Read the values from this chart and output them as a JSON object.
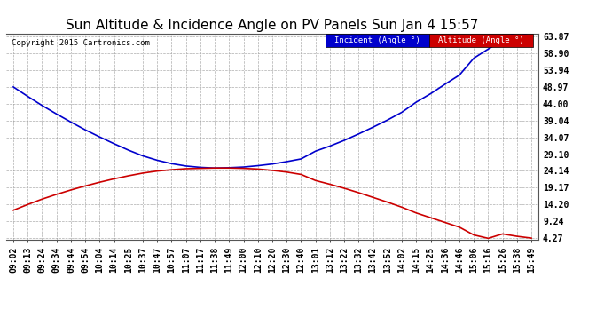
{
  "title": "Sun Altitude & Incidence Angle on PV Panels Sun Jan 4 15:57",
  "copyright": "Copyright 2015 Cartronics.com",
  "legend_incident": "Incident (Angle °)",
  "legend_altitude": "Altitude (Angle °)",
  "x_labels": [
    "09:02",
    "09:13",
    "09:24",
    "09:34",
    "09:44",
    "09:54",
    "10:04",
    "10:14",
    "10:25",
    "10:37",
    "10:47",
    "10:57",
    "11:07",
    "11:17",
    "11:38",
    "11:49",
    "12:00",
    "12:10",
    "12:20",
    "12:30",
    "12:40",
    "13:01",
    "13:12",
    "13:22",
    "13:32",
    "13:42",
    "13:52",
    "14:02",
    "14:15",
    "14:25",
    "14:36",
    "14:46",
    "15:06",
    "15:16",
    "15:26",
    "15:38",
    "15:49"
  ],
  "incident_values": [
    49.0,
    46.2,
    43.5,
    41.0,
    38.6,
    36.3,
    34.2,
    32.2,
    30.3,
    28.6,
    27.3,
    26.3,
    25.6,
    25.2,
    25.0,
    25.1,
    25.3,
    25.7,
    26.2,
    26.9,
    27.7,
    30.0,
    31.5,
    33.2,
    35.1,
    37.1,
    39.2,
    41.5,
    44.5,
    47.0,
    49.8,
    52.5,
    57.5,
    60.2,
    62.8,
    65.5,
    63.87
  ],
  "altitude_values": [
    12.5,
    14.2,
    15.8,
    17.2,
    18.5,
    19.7,
    20.8,
    21.8,
    22.7,
    23.5,
    24.1,
    24.5,
    24.8,
    24.9,
    25.0,
    25.0,
    24.9,
    24.7,
    24.3,
    23.8,
    23.1,
    21.3,
    20.2,
    19.0,
    17.7,
    16.3,
    14.9,
    13.4,
    11.7,
    10.3,
    8.9,
    7.5,
    5.2,
    4.2,
    5.5,
    4.8,
    4.27
  ],
  "yticks": [
    4.27,
    9.24,
    14.2,
    19.17,
    24.14,
    29.1,
    34.07,
    39.04,
    44.0,
    48.97,
    53.94,
    58.9,
    63.87
  ],
  "ymin": 4.27,
  "ymax": 63.87,
  "incident_color": "#0000cc",
  "altitude_color": "#cc0000",
  "bg_color": "#ffffff",
  "grid_color": "#999999",
  "title_fontsize": 11,
  "label_fontsize": 7
}
